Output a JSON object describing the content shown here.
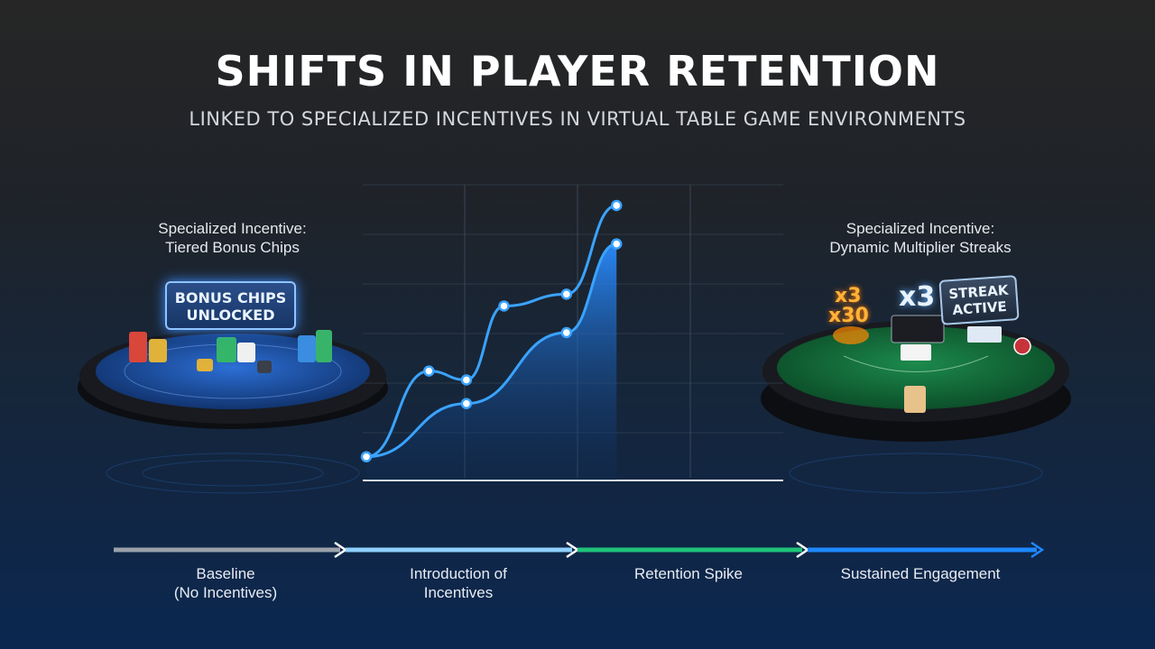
{
  "header": {
    "title": "SHIFTS IN PLAYER RETENTION",
    "subtitle": "LINKED TO SPECIALIZED INCENTIVES IN VIRTUAL TABLE GAME ENVIRONMENTS"
  },
  "left_panel": {
    "caption_line1": "Specialized Incentive:",
    "caption_line2": "Tiered Bonus Chips",
    "badge_line1": "BONUS CHIPS",
    "badge_line2": "UNLOCKED"
  },
  "right_panel": {
    "caption_line1": "Specialized Incentive:",
    "caption_line2": "Dynamic Multiplier Streaks",
    "badge_line1": "STREAK",
    "badge_line2": "ACTIVE",
    "multiplier_big": "x3",
    "multiplier_small_top": "x3",
    "multiplier_small_bottom": "x30"
  },
  "timeline": {
    "stages": [
      {
        "line1": "Baseline",
        "line2": "(No Incentives)",
        "color": "#9aa1aa"
      },
      {
        "line1": "Introduction of",
        "line2": "Incentives",
        "color": "#8fd0ff"
      },
      {
        "line1": "Retention Spike",
        "line2": "",
        "color": "#1fc47a"
      },
      {
        "line1": "Sustained Engagement",
        "line2": "",
        "color": "#1e88ff"
      }
    ]
  },
  "colors": {
    "line": "#3aa3ff",
    "point_fill": "#ffffff",
    "area_top": "#2a8cff",
    "grid": "#3a4656"
  },
  "chart_data": {
    "type": "line",
    "title": "SHIFTS IN PLAYER RETENTION",
    "xlabel": "",
    "ylabel": "",
    "grid": true,
    "legend": "none",
    "xlim": [
      0,
      7
    ],
    "ylim": [
      0,
      10
    ],
    "series": [
      {
        "x": [
          0,
          1,
          1.6,
          2.2,
          3.2,
          4
        ],
        "values": [
          0.8,
          3.7,
          3.4,
          5.9,
          6.3,
          9.3
        ]
      },
      {
        "x": [
          0,
          1.6,
          3.2,
          4
        ],
        "values": [
          0.8,
          2.6,
          5.0,
          8.0
        ]
      }
    ]
  }
}
